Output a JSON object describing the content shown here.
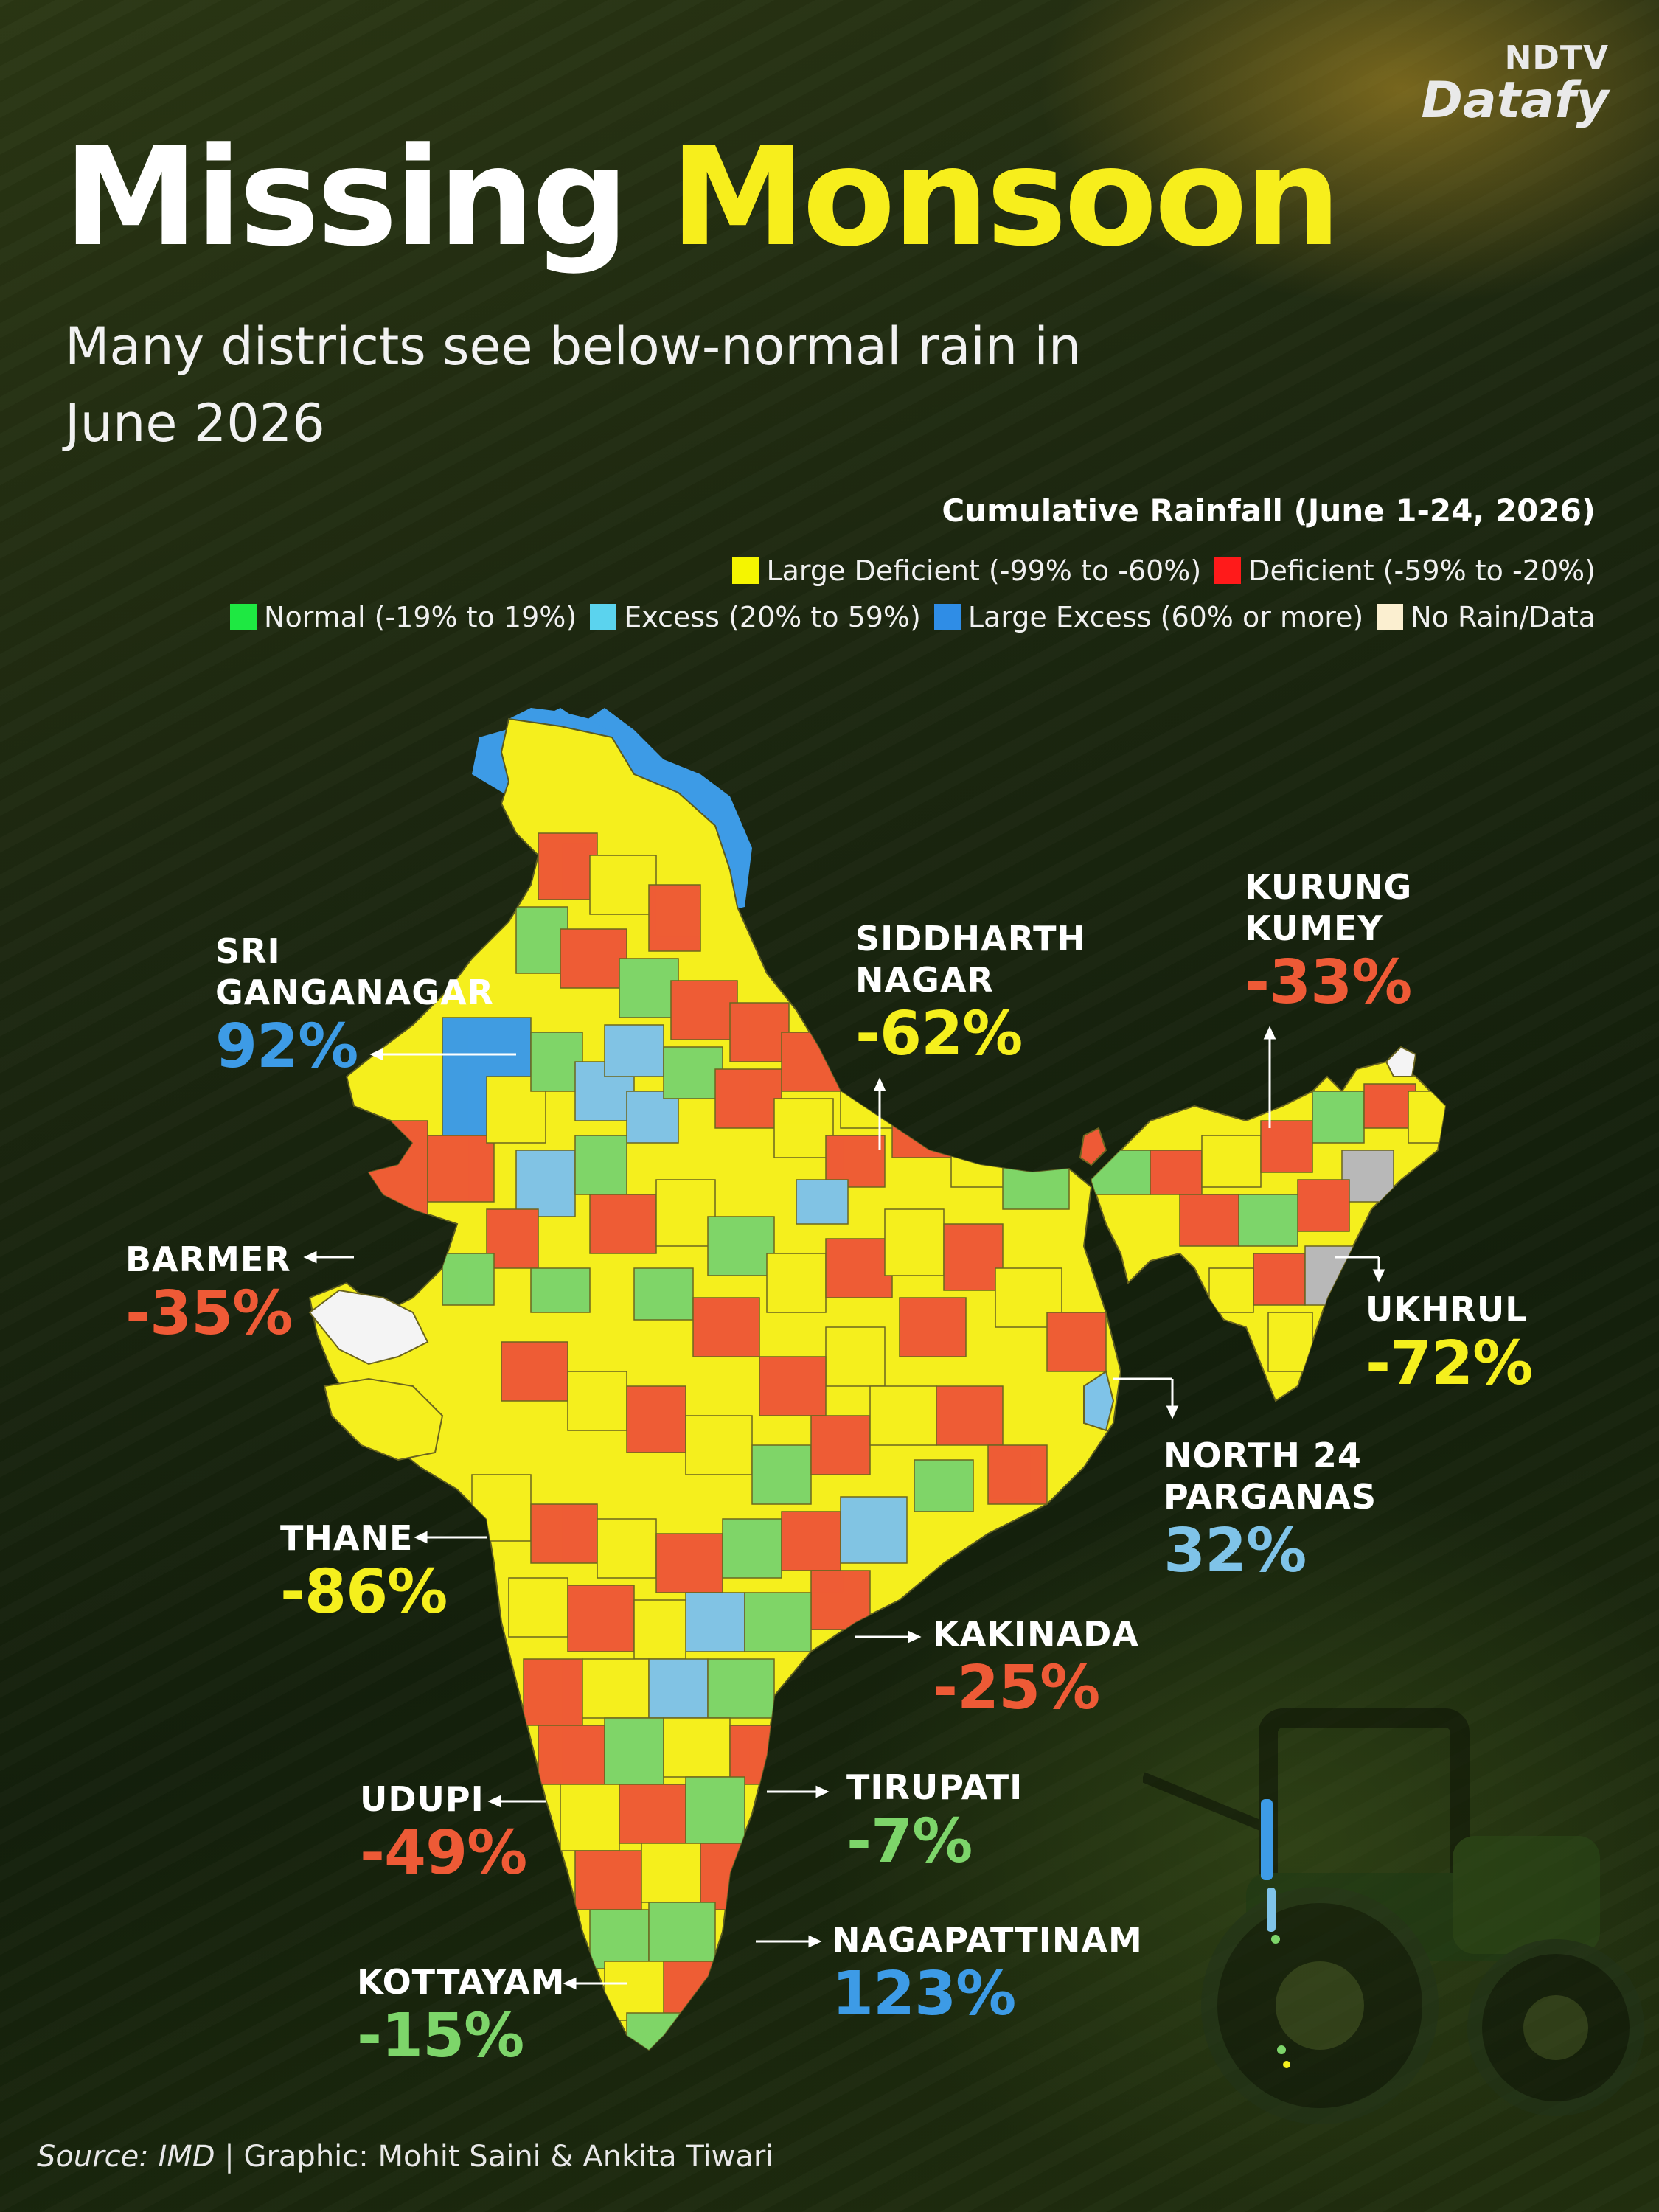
{
  "brand": {
    "top": "NDTV",
    "bottom": "Datafy"
  },
  "title": {
    "part1": "Missing",
    "part2": "Monsoon"
  },
  "subtitle": "Many districts see below-normal rain in June 2026",
  "legend": {
    "title": "Cumulative Rainfall (June 1-24, 2026)",
    "items": [
      {
        "label": "Large Deficient (-99% to -60%)",
        "color": "#f5f500"
      },
      {
        "label": "Deficient (-59% to -20%)",
        "color": "#ff1a1a"
      },
      {
        "label": "Normal (-19% to 19%)",
        "color": "#1ee842"
      },
      {
        "label": "Excess (20% to 59%)",
        "color": "#5bd3ee"
      },
      {
        "label": "Large Excess (60% or more)",
        "color": "#2f8de6"
      },
      {
        "label": "No Rain/Data",
        "color": "#fbefd0"
      }
    ]
  },
  "map_colors": {
    "yellow": "#f5ef1d",
    "red": "#ee5a36",
    "green": "#7dd56a",
    "light_blue": "#7fc3e8",
    "blue": "#3d9be6",
    "white": "#f4f4f4",
    "grey": "#b8b8b8"
  },
  "districts": [
    {
      "name": "SRI GANGANAGAR",
      "value": "92%",
      "color": "#3d9be6"
    },
    {
      "name": "SIDDHARTH NAGAR",
      "value": "-62%",
      "color": "#f5ef1d"
    },
    {
      "name": "KURUNG KUMEY",
      "value": "-33%",
      "color": "#ee5a36"
    },
    {
      "name": "BARMER",
      "value": "-35%",
      "color": "#ee5a36"
    },
    {
      "name": "UKHRUL",
      "value": "-72%",
      "color": "#f5ef1d"
    },
    {
      "name": "NORTH 24 PARGANAS",
      "value": "32%",
      "color": "#7fc3e8"
    },
    {
      "name": "THANE",
      "value": "-86%",
      "color": "#f5ef1d"
    },
    {
      "name": "KAKINADA",
      "value": "-25%",
      "color": "#ee5a36"
    },
    {
      "name": "TIRUPATI",
      "value": "-7%",
      "color": "#7dd56a"
    },
    {
      "name": "UDUPI",
      "value": "-49%",
      "color": "#ee5a36"
    },
    {
      "name": "NAGAPATTINAM",
      "value": "123%",
      "color": "#3d9be6"
    },
    {
      "name": "KOTTAYAM",
      "value": "-15%",
      "color": "#7dd56a"
    }
  ],
  "source": {
    "label": "Source: IMD",
    "credit": " | Graphic: Mohit Saini & Ankita Tiwari"
  }
}
